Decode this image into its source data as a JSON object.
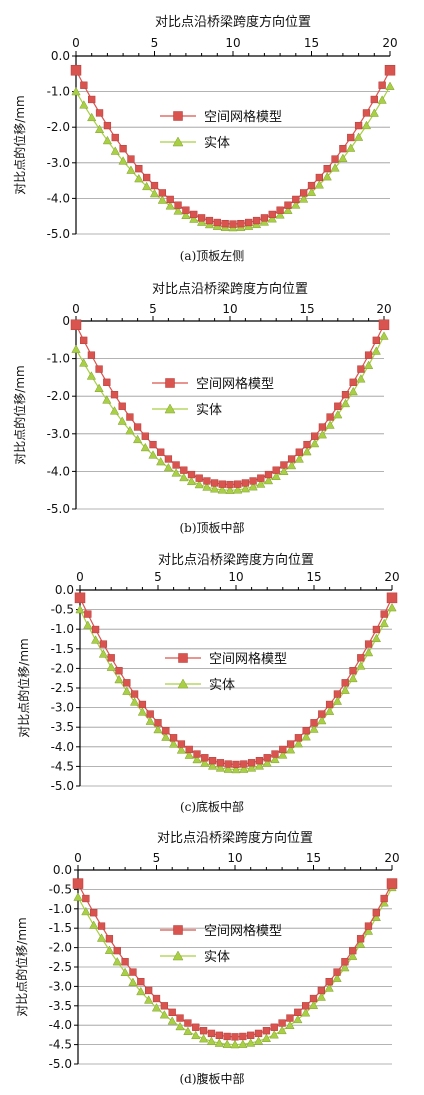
{
  "colors": {
    "model": "#d9534f",
    "solid": "#a8cf45",
    "solid_edge": "#7fa02a",
    "axis": "#000000"
  },
  "panels": [
    {
      "caption": "(a)顶板左侧",
      "chart_data": {
        "type": "line",
        "title": "对比点沿桥梁跨度方向位置",
        "ylabel": "对比点的位移/mm",
        "xlim": [
          0,
          20
        ],
        "ylim": [
          -5.0,
          0.0
        ],
        "xticks": [
          "0",
          "5",
          "10",
          "15",
          "20"
        ],
        "yticks": [
          "0.0",
          "-1.0",
          "-2.0",
          "-3.0",
          "-4.0",
          "-5.0"
        ],
        "ytick_values": [
          0,
          -1,
          -2,
          -3,
          -4,
          -5
        ],
        "grid": true,
        "legend": "center",
        "series": [
          {
            "name": "空间网格模型",
            "marker": "square",
            "min": -4.72,
            "start": -0.4,
            "end": -0.4,
            "points": 41
          },
          {
            "name": "实体",
            "marker": "triangle",
            "min": -4.82,
            "start": -1.0,
            "end": -0.85,
            "points": 41
          }
        ]
      }
    },
    {
      "caption": "(b)顶板中部",
      "chart_data": {
        "type": "line",
        "title": "对比点沿桥梁跨度方向位置",
        "ylabel": "对比点的位移/mm",
        "xlim": [
          0,
          20
        ],
        "ylim": [
          -5.0,
          0.0
        ],
        "xticks": [
          "0",
          "5",
          "10",
          "15",
          "20"
        ],
        "yticks": [
          "0",
          "-1.0",
          "-2.0",
          "-3.0",
          "-4.0",
          "-5.0"
        ],
        "ytick_values": [
          0,
          -1,
          -2,
          -3,
          -4,
          -5
        ],
        "grid": true,
        "legend": "center",
        "series": [
          {
            "name": "空间网格模型",
            "marker": "square",
            "min": -4.35,
            "start": -0.1,
            "end": -0.1,
            "points": 41
          },
          {
            "name": "实体",
            "marker": "triangle",
            "min": -4.5,
            "start": -0.75,
            "end": -0.4,
            "points": 41
          }
        ]
      }
    },
    {
      "caption": "(c)底板中部",
      "chart_data": {
        "type": "line",
        "title": "对比点沿桥梁跨度方向位置",
        "ylabel": "对比点的位移/mm",
        "xlim": [
          0,
          20
        ],
        "ylim": [
          -5.0,
          0.0
        ],
        "xticks": [
          "0",
          "5",
          "10",
          "15",
          "20"
        ],
        "yticks": [
          "0.0",
          "-0.5",
          "-1.0",
          "-1.5",
          "-2.0",
          "-2.5",
          "-3.0",
          "-3.5",
          "-4.0",
          "-4.5",
          "-5.0"
        ],
        "ytick_values": [
          0,
          -0.5,
          -1,
          -1.5,
          -2,
          -2.5,
          -3,
          -3.5,
          -4,
          -4.5,
          -5
        ],
        "grid": true,
        "legend": "center",
        "series": [
          {
            "name": "空间网格模型",
            "marker": "square",
            "min": -4.45,
            "start": -0.2,
            "end": -0.2,
            "points": 41
          },
          {
            "name": "实体",
            "marker": "triangle",
            "min": -4.58,
            "start": -0.5,
            "end": -0.45,
            "points": 41
          }
        ]
      }
    },
    {
      "caption": "(d)腹板中部",
      "chart_data": {
        "type": "line",
        "title": "对比点沿桥梁跨度方向位置",
        "ylabel": "对比点的位移/mm",
        "xlim": [
          0,
          20
        ],
        "ylim": [
          -5.0,
          0.0
        ],
        "xticks": [
          "0",
          "5",
          "10",
          "15",
          "20"
        ],
        "yticks": [
          "0.0",
          "-0.5",
          "-1.0",
          "-1.5",
          "-2.0",
          "-2.5",
          "-3.0",
          "-3.5",
          "-4.0",
          "-4.5",
          "-5.0"
        ],
        "ytick_values": [
          0,
          -0.5,
          -1,
          -1.5,
          -2,
          -2.5,
          -3,
          -3.5,
          -4,
          -4.5,
          -5
        ],
        "grid": true,
        "legend": "center",
        "series": [
          {
            "name": "空间网格模型",
            "marker": "square",
            "min": -4.3,
            "start": -0.35,
            "end": -0.35,
            "points": 41
          },
          {
            "name": "实体",
            "marker": "triangle",
            "min": -4.5,
            "start": -0.7,
            "end": -0.45,
            "points": 41
          }
        ]
      }
    }
  ]
}
